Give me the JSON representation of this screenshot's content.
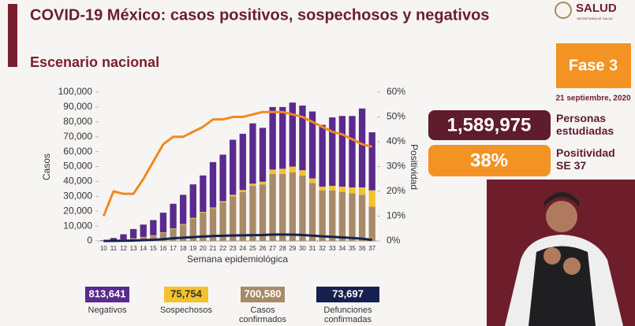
{
  "header": {
    "title": "COVID-19 México: casos positivos, sospechosos y negativos",
    "subtitle": "Escenario nacional",
    "logo": "SALUD",
    "logo_sub": "SECRETARÍA DE SALUD"
  },
  "phase": "Fase 3",
  "date": "21 septiembre, 2020",
  "stats": [
    {
      "value": "1,589,975",
      "label": "Personas estudiadas"
    },
    {
      "value": "38%",
      "label": "Positividad SE 37"
    }
  ],
  "chart_data": {
    "type": "bar",
    "stacked": true,
    "x_label": "Semana epidemiológica",
    "y_label": "Casos",
    "categories": [
      "10",
      "11",
      "12",
      "13",
      "14",
      "15",
      "16",
      "17",
      "18",
      "19",
      "20",
      "21",
      "22",
      "23",
      "24",
      "25",
      "26",
      "27",
      "28",
      "29",
      "30",
      "31",
      "32",
      "33",
      "34",
      "35",
      "36",
      "37"
    ],
    "ylim": [
      0,
      100000
    ],
    "yticks": [
      0,
      {
        "value": 10000,
        "label": "10,000"
      },
      {
        "value": 20000,
        "label": "20,000"
      },
      {
        "value": 30000,
        "label": "30,000"
      },
      {
        "value": 40000,
        "label": "40,000"
      },
      {
        "value": 50000,
        "label": "50,000"
      },
      {
        "value": 60000,
        "label": "60,000"
      },
      {
        "value": 70000,
        "label": "70,000"
      },
      {
        "value": 80000,
        "label": "80,000"
      },
      {
        "value": 90000,
        "label": "90,000"
      },
      {
        "value": 100000,
        "label": "100,000"
      }
    ],
    "y2lim": [
      0,
      60
    ],
    "y2ticks": [
      {
        "value": 0,
        "label": "0%"
      },
      {
        "value": 10,
        "label": "10%"
      },
      {
        "value": 20,
        "label": "20%"
      },
      {
        "value": 30,
        "label": "30%"
      },
      {
        "value": 40,
        "label": "40%"
      },
      {
        "value": 50,
        "label": "50%"
      },
      {
        "value": 60,
        "label": "60%"
      }
    ],
    "series": [
      {
        "name": "Casos confirmados",
        "total": "700,580",
        "color": "#a78b68",
        "kind": "bar",
        "values": [
          200,
          500,
          900,
          1500,
          2500,
          3500,
          5500,
          8000,
          11000,
          15000,
          19000,
          22000,
          26000,
          30000,
          33000,
          37000,
          38000,
          45000,
          45000,
          46000,
          44000,
          39000,
          34000,
          34000,
          33000,
          32000,
          31000,
          23000
        ]
      },
      {
        "name": "Sospechosos",
        "total": "75,754",
        "color": "#f5c22f",
        "kind": "bar",
        "values": [
          100,
          100,
          100,
          200,
          200,
          300,
          300,
          400,
          400,
          500,
          500,
          500,
          700,
          1000,
          1200,
          1500,
          1800,
          3000,
          3500,
          4000,
          3500,
          3000,
          2500,
          3000,
          3500,
          4000,
          5000,
          11000
        ]
      },
      {
        "name": "Negativos",
        "total": "813,641",
        "color": "#5a2a8e",
        "kind": "bar",
        "values": [
          200,
          1400,
          3500,
          6300,
          8300,
          10200,
          13200,
          16600,
          19600,
          22500,
          24500,
          30500,
          31300,
          37000,
          37800,
          40500,
          36200,
          42000,
          41500,
          43000,
          43500,
          45000,
          41500,
          46000,
          47500,
          48000,
          53000,
          39000
        ]
      },
      {
        "name": "Defunciones confirmadas",
        "total": "73,697",
        "color": "#16214f",
        "kind": "line",
        "values": [
          0,
          50,
          100,
          250,
          500,
          800,
          1200,
          1800,
          2200,
          2600,
          3000,
          3300,
          3500,
          3700,
          3800,
          3900,
          4000,
          4300,
          4300,
          4200,
          4000,
          3600,
          3100,
          2800,
          2400,
          2000,
          1500,
          700
        ]
      },
      {
        "name": "Positividad",
        "color": "#f08a1f",
        "kind": "line",
        "axis": "y2",
        "values": [
          10,
          20,
          19,
          19,
          25,
          32,
          39,
          42,
          42,
          44,
          46,
          49,
          49,
          50,
          50,
          51,
          52,
          52,
          52,
          51,
          50,
          48,
          46,
          44,
          43,
          41,
          39,
          38
        ]
      }
    ]
  }
}
